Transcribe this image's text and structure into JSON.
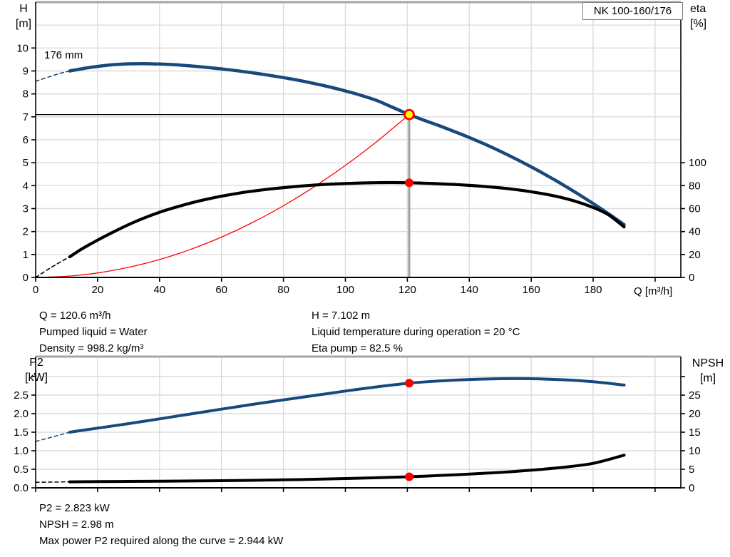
{
  "annotations": {
    "top_left": [
      "Q = 120.6 m³/h",
      "Pumped liquid = Water",
      "Density = 998.2 kg/m³"
    ],
    "top_right": [
      "H = 7.102 m",
      "Liquid temperature during operation = 20 °C",
      "Eta pump = 82.5 %"
    ],
    "bottom_left": [
      "P2 = 2.823 kW",
      "NPSH = 2.98 m",
      "Max power P2 required along the curve = 2.944 kW"
    ]
  },
  "colors": {
    "blue": "#17497c",
    "black": "#000000",
    "red": "#ff0000",
    "marker_yellow": "#ffff00",
    "grid": "#dcdcdc",
    "frame_gray": "#a6a6a6",
    "duty_line_gray": "#a0a0a0",
    "axis": "#000000"
  },
  "chart_data": [
    {
      "id": "qh",
      "type": "line",
      "title": "NK 100-160/176",
      "impeller_label": "176 mm",
      "duty_point": {
        "q_m3h": 120.6,
        "h_m": 7.102,
        "eta_pct": 82.5
      },
      "x": {
        "title": "Q [m³/h]",
        "range": [
          0,
          208.3
        ],
        "grid": [
          20,
          40,
          60,
          80,
          100,
          120,
          140,
          160,
          180,
          200
        ],
        "ticks": [
          {
            "v": 0,
            "l": "0"
          },
          {
            "v": 20,
            "l": "20"
          },
          {
            "v": 40,
            "l": "40"
          },
          {
            "v": 60,
            "l": "60"
          },
          {
            "v": 80,
            "l": "80"
          },
          {
            "v": 100,
            "l": "100"
          },
          {
            "v": 120,
            "l": "120"
          },
          {
            "v": 140,
            "l": "140"
          },
          {
            "v": 160,
            "l": "160"
          },
          {
            "v": 180,
            "l": "180"
          },
          {
            "v": 200,
            "l": ""
          }
        ]
      },
      "y": {
        "title_lines": [
          "H",
          "[m]"
        ],
        "range": [
          0,
          12
        ],
        "grid": [
          1,
          2,
          3,
          4,
          5,
          6,
          7,
          8,
          9,
          10,
          11
        ],
        "ticks": [
          {
            "v": 0,
            "l": "0"
          },
          {
            "v": 1,
            "l": "1"
          },
          {
            "v": 2,
            "l": "2"
          },
          {
            "v": 3,
            "l": "3"
          },
          {
            "v": 4,
            "l": "4"
          },
          {
            "v": 5,
            "l": "5"
          },
          {
            "v": 6,
            "l": "6"
          },
          {
            "v": 7,
            "l": "7"
          },
          {
            "v": 8,
            "l": "8"
          },
          {
            "v": 9,
            "l": "9"
          },
          {
            "v": 10,
            "l": "10"
          }
        ]
      },
      "y2": {
        "title_lines": [
          "eta",
          "[%]"
        ],
        "range": [
          0,
          240
        ],
        "ticks": [
          {
            "v": 0,
            "l": "0"
          },
          {
            "v": 20,
            "l": "20"
          },
          {
            "v": 40,
            "l": "40"
          },
          {
            "v": 60,
            "l": "60"
          },
          {
            "v": 80,
            "l": "80"
          },
          {
            "v": 100,
            "l": "100"
          }
        ]
      },
      "ref_lines": [
        {
          "name": "duty-head-reference-line",
          "axis": "y",
          "colorKey": "black",
          "width": 1.3,
          "points": [
            [
              0,
              7.102
            ],
            [
              120.6,
              7.102
            ]
          ]
        },
        {
          "name": "duty-vertical-line",
          "axis": "y",
          "colorKey": "duty_line_gray",
          "width": 3,
          "points": [
            [
              120.6,
              7.102
            ],
            [
              120.6,
              0
            ]
          ]
        }
      ],
      "series": [
        {
          "name": "system-curve",
          "axis": "y",
          "colorKey": "red",
          "width": 1.3,
          "dash": false,
          "points": [
            [
              0,
              0
            ],
            [
              10,
              0.049
            ],
            [
              20,
              0.195
            ],
            [
              30,
              0.44
            ],
            [
              40,
              0.781
            ],
            [
              50,
              1.221
            ],
            [
              60,
              1.758
            ],
            [
              70,
              2.393
            ],
            [
              80,
              3.125
            ],
            [
              90,
              3.956
            ],
            [
              100,
              4.883
            ],
            [
              110,
              5.908
            ],
            [
              120.6,
              7.102
            ]
          ]
        },
        {
          "name": "head-curve-extrapolated",
          "axis": "y",
          "colorKey": "blue",
          "width": 1.6,
          "dash": true,
          "points": [
            [
              0,
              8.55
            ],
            [
              4,
              8.73
            ],
            [
              8,
              8.9
            ],
            [
              11,
              9.0
            ]
          ]
        },
        {
          "name": "head-curve",
          "axis": "y",
          "colorKey": "blue",
          "width": 4.5,
          "dash": false,
          "points": [
            [
              11,
              9.0
            ],
            [
              16,
              9.12
            ],
            [
              20,
              9.2
            ],
            [
              25,
              9.27
            ],
            [
              30,
              9.31
            ],
            [
              35,
              9.32
            ],
            [
              40,
              9.3
            ],
            [
              45,
              9.27
            ],
            [
              50,
              9.22
            ],
            [
              55,
              9.16
            ],
            [
              60,
              9.09
            ],
            [
              65,
              9.01
            ],
            [
              70,
              8.92
            ],
            [
              75,
              8.82
            ],
            [
              80,
              8.71
            ],
            [
              85,
              8.59
            ],
            [
              90,
              8.45
            ],
            [
              95,
              8.3
            ],
            [
              100,
              8.13
            ],
            [
              105,
              7.94
            ],
            [
              110,
              7.72
            ],
            [
              115,
              7.43
            ],
            [
              120.6,
              7.102
            ],
            [
              125,
              6.87
            ],
            [
              130,
              6.63
            ],
            [
              135,
              6.37
            ],
            [
              140,
              6.1
            ],
            [
              145,
              5.81
            ],
            [
              150,
              5.5
            ],
            [
              155,
              5.17
            ],
            [
              160,
              4.82
            ],
            [
              165,
              4.45
            ],
            [
              170,
              4.06
            ],
            [
              175,
              3.65
            ],
            [
              180,
              3.22
            ],
            [
              185,
              2.77
            ],
            [
              190,
              2.3
            ]
          ]
        },
        {
          "name": "eta-curve-extrapolated",
          "axis": "y2",
          "colorKey": "black",
          "width": 1.6,
          "dash": true,
          "points": [
            [
              0,
              0
            ],
            [
              4,
              7
            ],
            [
              8,
              13.5
            ],
            [
              11,
              18
            ]
          ]
        },
        {
          "name": "eta-curve",
          "axis": "y2",
          "colorKey": "black",
          "width": 4.2,
          "dash": false,
          "points": [
            [
              11,
              18
            ],
            [
              15,
              25
            ],
            [
              20,
              32.5
            ],
            [
              25,
              39.5
            ],
            [
              30,
              46
            ],
            [
              35,
              51.8
            ],
            [
              40,
              56.8
            ],
            [
              45,
              61
            ],
            [
              50,
              64.8
            ],
            [
              55,
              68
            ],
            [
              60,
              70.8
            ],
            [
              65,
              73.2
            ],
            [
              70,
              75.2
            ],
            [
              75,
              76.9
            ],
            [
              80,
              78.3
            ],
            [
              85,
              79.5
            ],
            [
              90,
              80.5
            ],
            [
              95,
              81.3
            ],
            [
              100,
              81.9
            ],
            [
              105,
              82.3
            ],
            [
              110,
              82.6
            ],
            [
              115,
              82.7
            ],
            [
              120.6,
              82.5
            ],
            [
              125,
              82.2
            ],
            [
              130,
              81.7
            ],
            [
              135,
              81.1
            ],
            [
              140,
              80.3
            ],
            [
              145,
              79.3
            ],
            [
              150,
              78.1
            ],
            [
              155,
              76.6
            ],
            [
              160,
              74.7
            ],
            [
              165,
              72.4
            ],
            [
              170,
              69.5
            ],
            [
              175,
              65.8
            ],
            [
              180,
              61
            ],
            [
              185,
              54.5
            ],
            [
              190,
              44
            ]
          ]
        }
      ],
      "markers": [
        {
          "name": "duty-point-marker",
          "axis": "y",
          "q": 120.6,
          "v": 7.102,
          "r": 6.5,
          "fillKey": "marker_yellow",
          "strokeKey": "red",
          "strokeWidth": 2.8,
          "interactable": true
        },
        {
          "name": "eta-duty-marker",
          "axis": "y2",
          "q": 120.6,
          "v": 82.5,
          "r": 6,
          "fillKey": "red",
          "strokeWidth": 0,
          "interactable": true
        }
      ]
    },
    {
      "id": "p2-npsh",
      "type": "line",
      "title": "",
      "duty_point": {
        "q_m3h": 120.6,
        "p2_kw": 2.823,
        "npsh_m": 2.98,
        "max_p2_kw": 2.944
      },
      "x": {
        "title": "",
        "range": [
          0,
          208.3
        ],
        "grid": [
          20,
          40,
          60,
          80,
          100,
          120,
          140,
          160,
          180,
          200
        ],
        "ticks": [
          {
            "v": 0,
            "l": ""
          },
          {
            "v": 20,
            "l": ""
          },
          {
            "v": 40,
            "l": ""
          },
          {
            "v": 60,
            "l": ""
          },
          {
            "v": 80,
            "l": ""
          },
          {
            "v": 100,
            "l": ""
          },
          {
            "v": 120,
            "l": ""
          },
          {
            "v": 140,
            "l": ""
          },
          {
            "v": 160,
            "l": ""
          },
          {
            "v": 180,
            "l": ""
          },
          {
            "v": 200,
            "l": ""
          }
        ]
      },
      "y": {
        "title_lines": [
          "P2",
          "[kW]"
        ],
        "range": [
          0,
          3.538
        ],
        "grid": [
          0.5,
          1.0,
          1.5,
          2.0,
          2.5,
          3.0
        ],
        "ticks": [
          {
            "v": 0,
            "l": "0.0"
          },
          {
            "v": 0.5,
            "l": "0.5"
          },
          {
            "v": 1.0,
            "l": "1.0"
          },
          {
            "v": 1.5,
            "l": "1.5"
          },
          {
            "v": 2.0,
            "l": "2.0"
          },
          {
            "v": 2.5,
            "l": "2.5"
          },
          {
            "v": 3.0,
            "l": ""
          }
        ]
      },
      "y2": {
        "title_lines": [
          "NPSH",
          "[m]"
        ],
        "range": [
          0,
          35.38
        ],
        "ticks": [
          {
            "v": 0,
            "l": "0"
          },
          {
            "v": 5,
            "l": "5"
          },
          {
            "v": 10,
            "l": "10"
          },
          {
            "v": 15,
            "l": "15"
          },
          {
            "v": 20,
            "l": "20"
          },
          {
            "v": 25,
            "l": "25"
          },
          {
            "v": 30,
            "l": ""
          }
        ]
      },
      "ref_lines": [],
      "series": [
        {
          "name": "p2-curve-extrapolated",
          "axis": "y",
          "colorKey": "blue",
          "width": 1.5,
          "dash": true,
          "points": [
            [
              0,
              1.25
            ],
            [
              4,
              1.34
            ],
            [
              8,
              1.43
            ],
            [
              11,
              1.5
            ]
          ]
        },
        {
          "name": "p2-curve",
          "axis": "y",
          "colorKey": "blue",
          "width": 4,
          "dash": false,
          "points": [
            [
              11,
              1.5
            ],
            [
              20,
              1.61
            ],
            [
              30,
              1.73
            ],
            [
              40,
              1.86
            ],
            [
              50,
              1.99
            ],
            [
              60,
              2.12
            ],
            [
              70,
              2.25
            ],
            [
              80,
              2.37
            ],
            [
              90,
              2.49
            ],
            [
              100,
              2.61
            ],
            [
              110,
              2.72
            ],
            [
              120.6,
              2.823
            ],
            [
              130,
              2.879
            ],
            [
              140,
              2.92
            ],
            [
              150,
              2.941
            ],
            [
              155,
              2.944
            ],
            [
              160,
              2.941
            ],
            [
              170,
              2.915
            ],
            [
              180,
              2.86
            ],
            [
              190,
              2.77
            ]
          ]
        },
        {
          "name": "npsh-curve-extrapolated",
          "axis": "y2",
          "colorKey": "black",
          "width": 1.5,
          "dash": true,
          "points": [
            [
              0,
              1.5
            ],
            [
              4,
              1.54
            ],
            [
              8,
              1.58
            ],
            [
              11,
              1.62
            ]
          ]
        },
        {
          "name": "npsh-curve",
          "axis": "y2",
          "colorKey": "black",
          "width": 4,
          "dash": false,
          "points": [
            [
              11,
              1.62
            ],
            [
              20,
              1.68
            ],
            [
              30,
              1.73
            ],
            [
              40,
              1.78
            ],
            [
              50,
              1.84
            ],
            [
              60,
              1.92
            ],
            [
              70,
              2.02
            ],
            [
              80,
              2.15
            ],
            [
              90,
              2.3
            ],
            [
              100,
              2.5
            ],
            [
              110,
              2.72
            ],
            [
              120.6,
              2.98
            ],
            [
              130,
              3.3
            ],
            [
              140,
              3.7
            ],
            [
              150,
              4.15
            ],
            [
              160,
              4.75
            ],
            [
              170,
              5.5
            ],
            [
              180,
              6.6
            ],
            [
              190,
              8.8
            ]
          ]
        }
      ],
      "markers": [
        {
          "name": "p2-duty-marker",
          "axis": "y",
          "q": 120.6,
          "v": 2.823,
          "r": 6,
          "fillKey": "red",
          "strokeWidth": 0,
          "interactable": true
        },
        {
          "name": "npsh-duty-marker",
          "axis": "y2",
          "q": 120.6,
          "v": 2.98,
          "r": 6,
          "fillKey": "red",
          "strokeWidth": 0,
          "interactable": true
        }
      ]
    }
  ]
}
